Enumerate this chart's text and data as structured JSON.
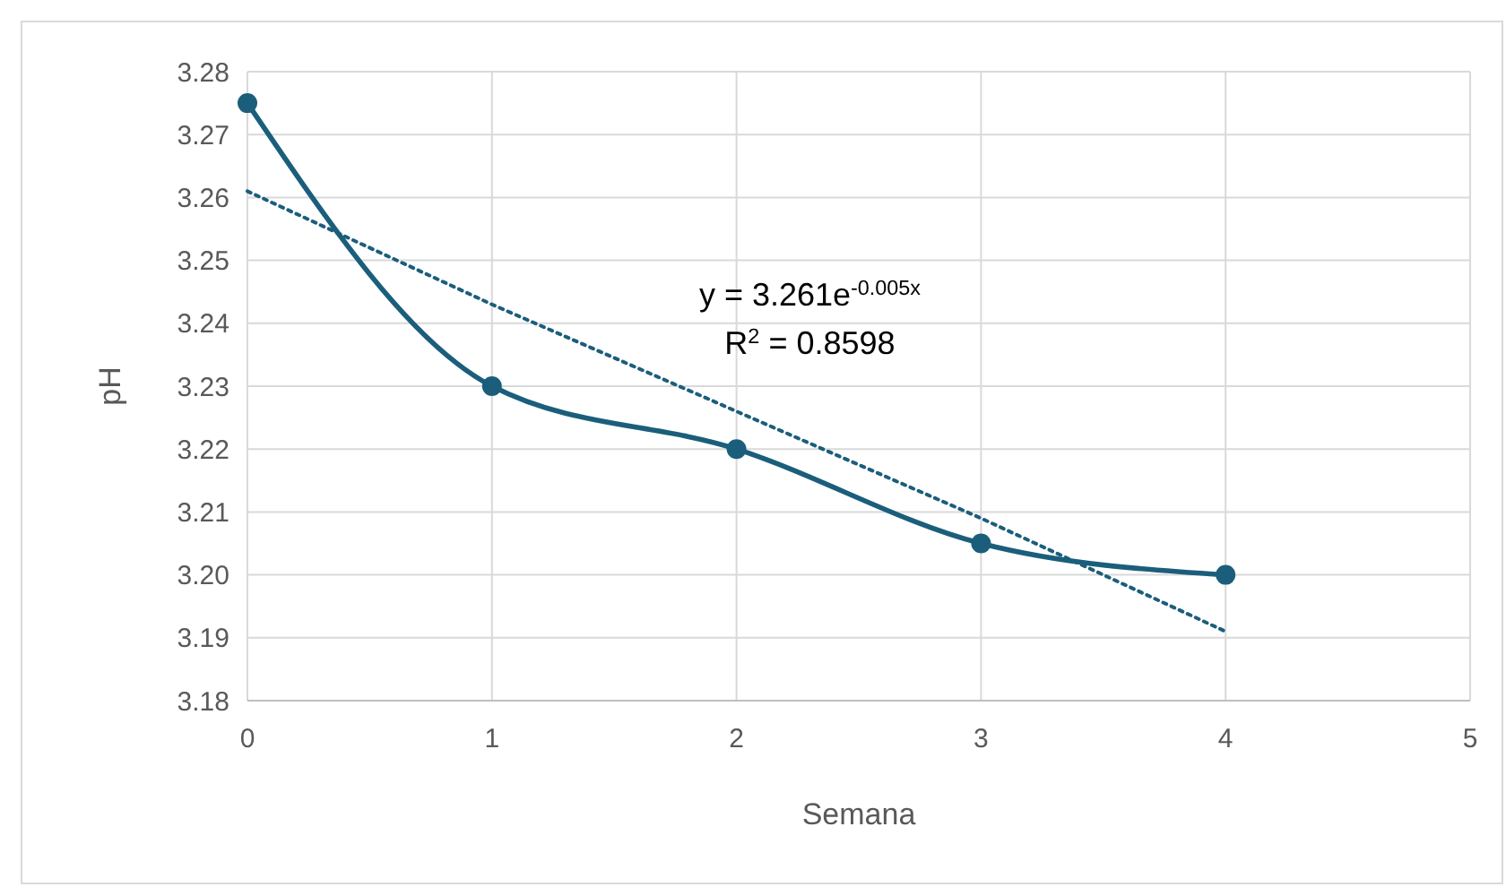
{
  "chart_data": {
    "type": "line",
    "xlabel": "Semana",
    "ylabel": "pH",
    "grid": true,
    "xlim": [
      0,
      5
    ],
    "xticks": [
      0,
      1,
      2,
      3,
      4,
      5
    ],
    "ylim": [
      3.18,
      3.28
    ],
    "yticks": [
      {
        "value": 3.18,
        "label": "3.18"
      },
      {
        "value": 3.19,
        "label": "3.19"
      },
      {
        "value": 3.2,
        "label": "3.20"
      },
      {
        "value": 3.21,
        "label": "3.21"
      },
      {
        "value": 3.22,
        "label": "3.22"
      },
      {
        "value": 3.23,
        "label": "3.23"
      },
      {
        "value": 3.24,
        "label": "3.24"
      },
      {
        "value": 3.25,
        "label": "3.25"
      },
      {
        "value": 3.26,
        "label": "3.26"
      },
      {
        "value": 3.27,
        "label": "3.27"
      },
      {
        "value": 3.28,
        "label": "3.28"
      }
    ],
    "x": [
      0,
      1,
      2,
      3,
      4
    ],
    "series": [
      {
        "color": "#1b5e7b",
        "values": [
          3.275,
          3.23,
          3.22,
          3.205,
          3.2
        ],
        "marker": "circle",
        "line_style": "solid"
      },
      {
        "color": "#1b5e7b",
        "x": [
          0,
          1,
          2,
          3,
          4
        ],
        "values": [
          3.261,
          3.243,
          3.226,
          3.209,
          3.191
        ],
        "marker": "none",
        "line_style": "dotted"
      }
    ],
    "annotations": [
      "y = 3.261e$^{-0.005x}$",
      "R$^{2}$ = 0.8598"
    ]
  }
}
